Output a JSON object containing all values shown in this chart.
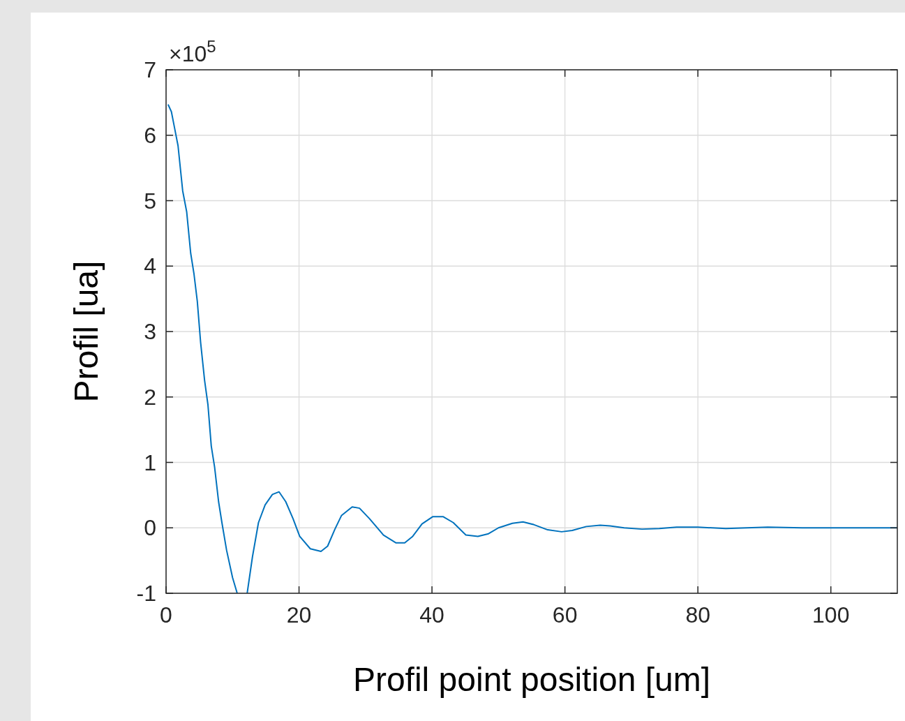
{
  "chart_data": {
    "type": "line",
    "xlabel": "Profil point position [um]",
    "ylabel": "Profil [ua]",
    "annotations": [
      "×10$^{5}$"
    ],
    "xlim": [
      0,
      110
    ],
    "xticks": [
      0,
      20,
      40,
      60,
      80,
      100
    ],
    "ylim": [
      -1,
      7
    ],
    "yticks": [
      -1,
      0,
      1,
      2,
      3,
      4,
      5,
      6,
      7
    ],
    "grid": true,
    "series": [
      {
        "color": "#0072bd",
        "x": [
          0.3,
          0.8,
          1.3,
          1.8,
          2.5,
          3.1,
          3.7,
          4.2,
          4.7,
          5.2,
          5.8,
          6.3,
          6.8,
          7.3,
          7.9,
          8.4,
          9.1,
          10.0,
          10.7,
          11.4,
          12.2,
          13.0,
          13.9,
          14.9,
          16.0,
          17.0,
          18.0,
          19.1,
          20.1,
          21.7,
          23.3,
          24.3,
          25.4,
          26.4,
          28.0,
          29.1,
          30.6,
          32.7,
          34.6,
          35.9,
          37.1,
          38.5,
          40.1,
          41.7,
          43.2,
          45.1,
          46.9,
          48.5,
          50.0,
          52.1,
          53.7,
          55.3,
          57.4,
          59.5,
          61.1,
          63.2,
          65.3,
          66.8,
          68.9,
          71.6,
          74.2,
          76.8,
          80,
          84.2,
          90.5,
          95.7,
          101,
          110
        ],
        "values": [
          6.47,
          6.36,
          6.1,
          5.84,
          5.15,
          4.83,
          4.2,
          3.88,
          3.46,
          2.83,
          2.25,
          1.88,
          1.25,
          0.93,
          0.4,
          0.08,
          -0.34,
          -0.76,
          -1,
          null,
          -1,
          -0.44,
          0.08,
          0.35,
          0.51,
          0.55,
          0.4,
          0.14,
          -0.13,
          -0.32,
          -0.36,
          -0.28,
          -0.02,
          0.19,
          0.32,
          0.3,
          0.14,
          -0.11,
          -0.23,
          -0.23,
          -0.13,
          0.06,
          0.17,
          0.17,
          0.08,
          -0.11,
          -0.13,
          -0.09,
          0,
          0.07,
          0.09,
          0.05,
          -0.03,
          -0.06,
          -0.04,
          0.02,
          0.04,
          0.03,
          0,
          -0.02,
          -0.01,
          0.01,
          0.01,
          -0.01,
          0.01,
          0,
          0,
          0
        ]
      }
    ]
  }
}
